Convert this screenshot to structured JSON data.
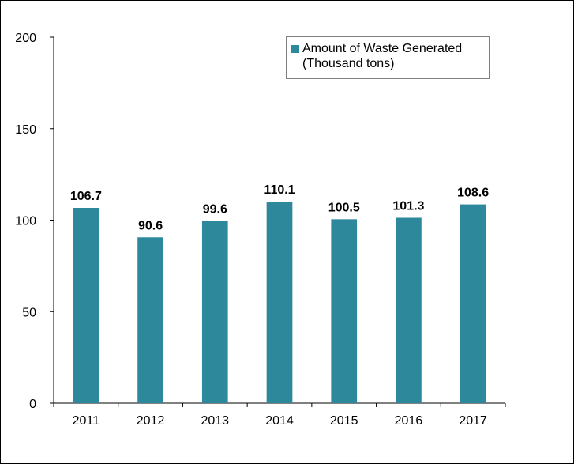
{
  "chart_data": {
    "type": "bar",
    "categories": [
      "2011",
      "2012",
      "2013",
      "2014",
      "2015",
      "2016",
      "2017"
    ],
    "series": [
      {
        "name": "Amount of Waste Generated (Thousand tons)",
        "values": [
          106.7,
          90.6,
          99.6,
          110.1,
          100.5,
          101.3,
          108.6
        ],
        "data_labels": [
          "106.7",
          "90.6",
          "99.6",
          "110.1",
          "100.5",
          "101.3",
          "108.6"
        ]
      }
    ],
    "y_ticks": [
      "0",
      "50",
      "100",
      "150",
      "200"
    ],
    "ylim": [
      0,
      200
    ],
    "grid": false,
    "legend_position": "top-right",
    "legend_lines": [
      "Amount of Waste Generated",
      "(Thousand tons)"
    ],
    "colors": {
      "bar": "#2e889c",
      "axis": "#000000",
      "legend_border": "#808080"
    }
  }
}
